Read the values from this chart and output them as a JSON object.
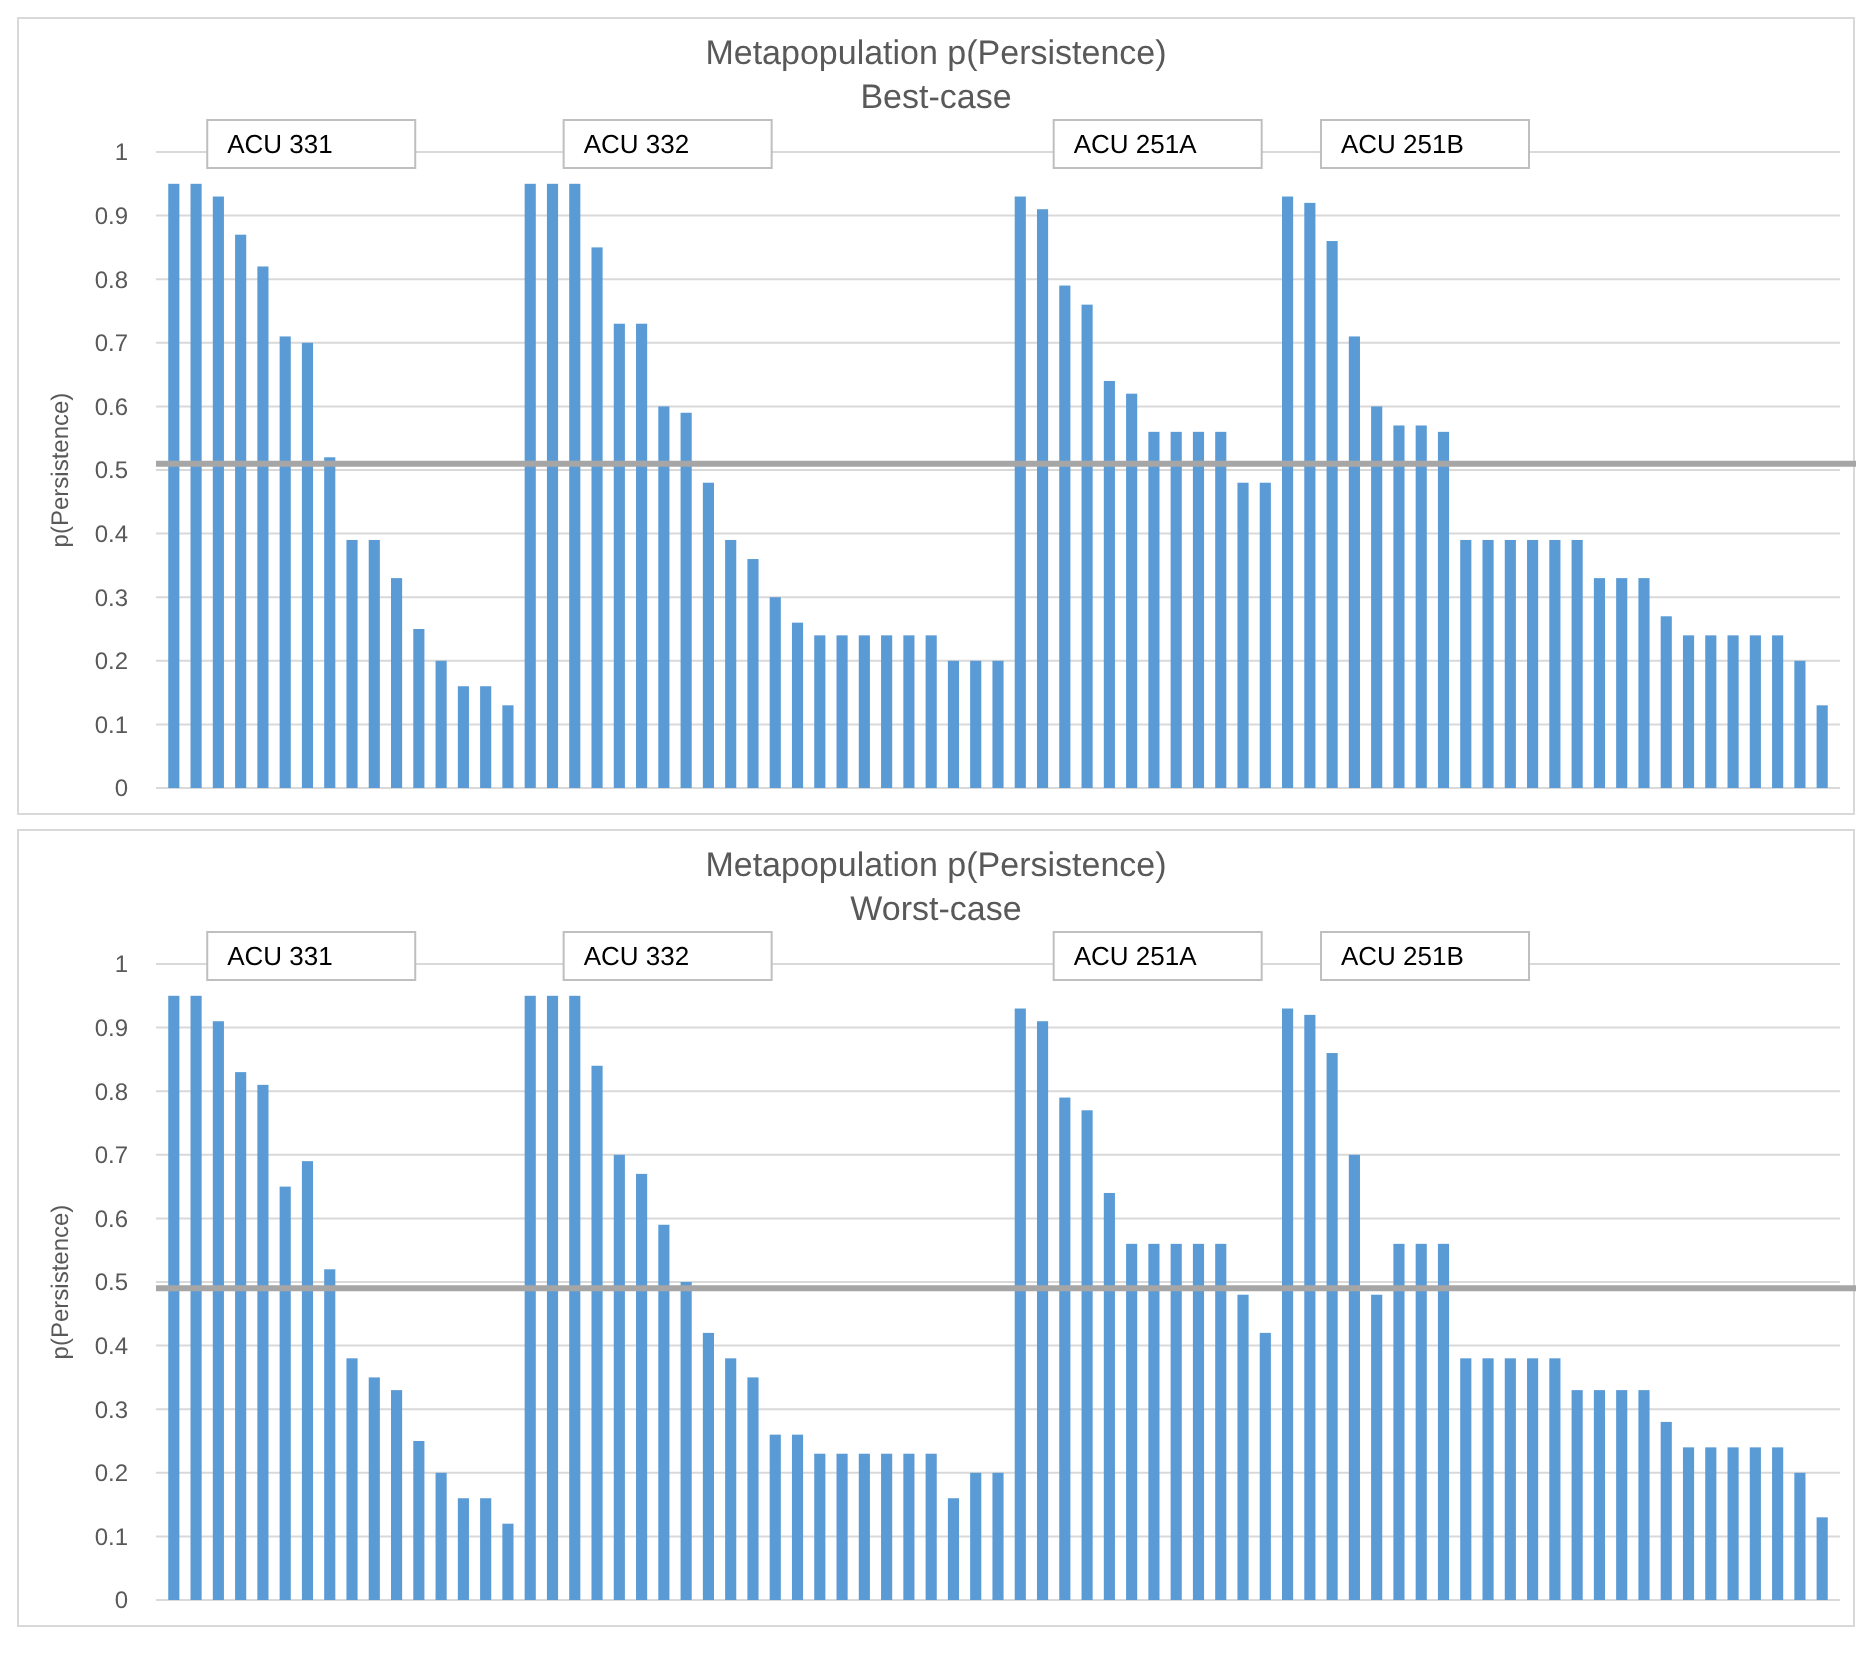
{
  "chart_data": [
    {
      "type": "bar",
      "title": "Metapopulation p(Persistence)",
      "subtitle": "Best-case",
      "ylabel": "p(Persistence)",
      "categories": [
        null,
        null,
        null,
        null,
        null,
        null,
        null,
        null,
        null,
        null,
        null,
        null,
        null,
        null,
        null,
        null,
        null,
        null,
        null,
        null,
        null,
        null,
        null,
        null,
        null,
        null,
        null,
        null,
        null,
        null,
        null,
        null,
        null,
        null,
        null,
        null,
        null,
        null,
        null,
        null,
        null,
        null,
        null,
        null,
        null,
        null,
        null,
        null,
        null,
        null,
        null,
        null,
        null,
        null,
        null,
        null,
        null,
        null,
        null,
        null,
        null,
        null,
        null,
        null,
        null,
        null,
        null,
        null,
        null,
        null,
        null,
        null,
        null,
        null,
        null
      ],
      "values": [
        0.95,
        0.95,
        0.93,
        0.87,
        0.82,
        0.71,
        0.7,
        0.52,
        0.39,
        0.39,
        0.33,
        0.25,
        0.2,
        0.16,
        0.16,
        0.13,
        0.95,
        0.95,
        0.95,
        0.85,
        0.73,
        0.73,
        0.6,
        0.59,
        0.48,
        0.39,
        0.36,
        0.3,
        0.26,
        0.24,
        0.24,
        0.24,
        0.24,
        0.24,
        0.24,
        0.2,
        0.2,
        0.2,
        0.93,
        0.91,
        0.79,
        0.76,
        0.64,
        0.62,
        0.56,
        0.56,
        0.56,
        0.56,
        0.48,
        0.48,
        0.93,
        0.92,
        0.86,
        0.71,
        0.6,
        0.57,
        0.57,
        0.56,
        0.39,
        0.39,
        0.39,
        0.39,
        0.39,
        0.39,
        0.33,
        0.33,
        0.33,
        0.27,
        0.24,
        0.24,
        0.24,
        0.24,
        0.24,
        0.2,
        0.13
      ],
      "color": "#5b9bd5",
      "ylim": [
        0,
        1
      ],
      "yticks": [
        0,
        0.1,
        0.2,
        0.3,
        0.4,
        0.5,
        0.6,
        0.7,
        0.8,
        0.9,
        1
      ],
      "grid": "y",
      "tick_labels": "y",
      "ref_lines": [
        {
          "axis": "y",
          "value": 0.51,
          "color": "#a6a6a6"
        }
      ],
      "annotations": [
        "ACU 331",
        "ACU 332",
        "ACU 251A",
        "ACU 251B"
      ]
    },
    {
      "type": "bar",
      "title": "Metapopulation p(Persistence)",
      "subtitle": "Worst-case",
      "ylabel": "p(Persistence)",
      "categories": [
        null,
        null,
        null,
        null,
        null,
        null,
        null,
        null,
        null,
        null,
        null,
        null,
        null,
        null,
        null,
        null,
        null,
        null,
        null,
        null,
        null,
        null,
        null,
        null,
        null,
        null,
        null,
        null,
        null,
        null,
        null,
        null,
        null,
        null,
        null,
        null,
        null,
        null,
        null,
        null,
        null,
        null,
        null,
        null,
        null,
        null,
        null,
        null,
        null,
        null,
        null,
        null,
        null,
        null,
        null,
        null,
        null,
        null,
        null,
        null,
        null,
        null,
        null,
        null,
        null,
        null,
        null,
        null,
        null,
        null,
        null,
        null,
        null,
        null,
        null
      ],
      "values": [
        0.95,
        0.95,
        0.91,
        0.83,
        0.81,
        0.65,
        0.69,
        0.52,
        0.38,
        0.35,
        0.33,
        0.25,
        0.2,
        0.16,
        0.16,
        0.12,
        0.95,
        0.95,
        0.95,
        0.84,
        0.7,
        0.67,
        0.59,
        0.5,
        0.42,
        0.38,
        0.35,
        0.26,
        0.26,
        0.23,
        0.23,
        0.23,
        0.23,
        0.23,
        0.23,
        0.16,
        0.2,
        0.2,
        0.93,
        0.91,
        0.79,
        0.77,
        0.64,
        0.56,
        0.56,
        0.56,
        0.56,
        0.56,
        0.48,
        0.42,
        0.93,
        0.92,
        0.86,
        0.7,
        0.48,
        0.56,
        0.56,
        0.56,
        0.38,
        0.38,
        0.38,
        0.38,
        0.38,
        0.33,
        0.33,
        0.33,
        0.33,
        0.28,
        0.24,
        0.24,
        0.24,
        0.24,
        0.24,
        0.2,
        0.13
      ],
      "color": "#5b9bd5",
      "ylim": [
        0,
        1
      ],
      "yticks": [
        0,
        0.1,
        0.2,
        0.3,
        0.4,
        0.5,
        0.6,
        0.7,
        0.8,
        0.9,
        1
      ],
      "grid": "y",
      "tick_labels": "y",
      "ref_lines": [
        {
          "axis": "y",
          "value": 0.49,
          "color": "#a6a6a6"
        }
      ],
      "annotations": [
        "ACU 331",
        "ACU 332",
        "ACU 251A",
        "ACU 251B"
      ]
    }
  ]
}
